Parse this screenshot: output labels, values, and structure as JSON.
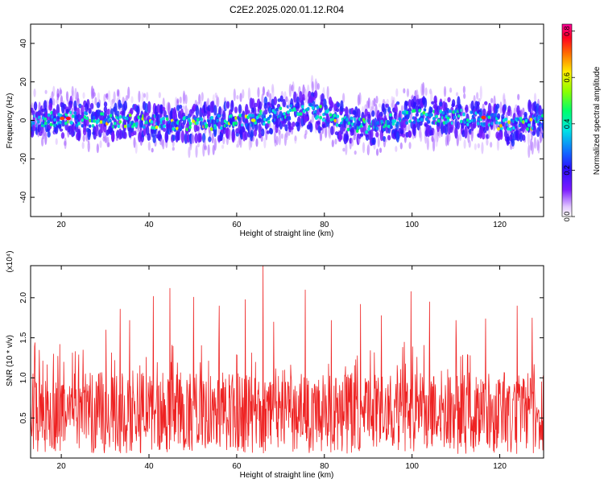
{
  "title": "C2E2.2025.020.01.12.R04",
  "chart_data": [
    {
      "type": "heatmap",
      "xlabel": "Height of straight line (km)",
      "ylabel": "Frequency (Hz)",
      "xlim": [
        13,
        130
      ],
      "ylim": [
        -50,
        50
      ],
      "xticks": [
        "20",
        "40",
        "60",
        "80",
        "100",
        "120"
      ],
      "yticks": [
        "40",
        "20",
        "0",
        "-20",
        "-40"
      ],
      "colorbar": {
        "label": "Normalized spectral amplitude",
        "range": [
          0.0,
          0.83
        ],
        "ticks": [
          "0.8",
          "0.6",
          "0.4",
          "0.2",
          "0.0"
        ],
        "colormap": "rainbow (white-violet-blue-cyan-green-yellow-red-magenta)"
      },
      "band_center": [
        {
          "x": 13,
          "y": 0
        },
        {
          "x": 20,
          "y": 1
        },
        {
          "x": 30,
          "y": 0
        },
        {
          "x": 40,
          "y": -1
        },
        {
          "x": 50,
          "y": -2
        },
        {
          "x": 60,
          "y": 0
        },
        {
          "x": 65,
          "y": 1
        },
        {
          "x": 70,
          "y": 3
        },
        {
          "x": 75,
          "y": 6
        },
        {
          "x": 79,
          "y": 4
        },
        {
          "x": 85,
          "y": -2
        },
        {
          "x": 90,
          "y": -3
        },
        {
          "x": 100,
          "y": 2
        },
        {
          "x": 110,
          "y": 2
        },
        {
          "x": 118,
          "y": 0
        },
        {
          "x": 122,
          "y": -3
        },
        {
          "x": 130,
          "y": 0
        }
      ],
      "peak_amplitude": 0.83
    },
    {
      "type": "line",
      "xlabel": "Height of straight line (km)",
      "ylabel": "SNR (10 * v/v)",
      "y_multiplier": "(x10⁴)",
      "xlim": [
        13,
        130
      ],
      "ylim": [
        0,
        2.4
      ],
      "xticks": [
        "20",
        "40",
        "60",
        "80",
        "100",
        "120"
      ],
      "yticks": [
        "2.0",
        "1.5",
        "1.0",
        "0.5"
      ],
      "color": "#ee2222",
      "baseline_mean": 0.62,
      "notable_peaks": [
        {
          "x": 66.0,
          "y": 2.4
        },
        {
          "x": 44.8,
          "y": 2.12
        },
        {
          "x": 75.6,
          "y": 2.1
        },
        {
          "x": 41.0,
          "y": 2.02
        },
        {
          "x": 50.2,
          "y": 2.01
        },
        {
          "x": 99.8,
          "y": 2.08
        },
        {
          "x": 62.0,
          "y": 1.98
        },
        {
          "x": 104.0,
          "y": 1.95
        },
        {
          "x": 88.2,
          "y": 1.92
        },
        {
          "x": 56.0,
          "y": 1.9
        },
        {
          "x": 33.4,
          "y": 1.86
        },
        {
          "x": 124.0,
          "y": 1.9
        },
        {
          "x": 127.4,
          "y": 1.75
        },
        {
          "x": 110.0,
          "y": 1.72
        },
        {
          "x": 93.0,
          "y": 1.78
        },
        {
          "x": 35.6,
          "y": 1.72
        },
        {
          "x": 68.4,
          "y": 1.7
        },
        {
          "x": 81.6,
          "y": 1.72
        },
        {
          "x": 116.8,
          "y": 1.74
        },
        {
          "x": 30.2,
          "y": 1.6
        },
        {
          "x": 20.6,
          "y": 1.2
        },
        {
          "x": 18.2,
          "y": 1.3
        },
        {
          "x": 25.0,
          "y": 1.35
        },
        {
          "x": 14.2,
          "y": 0.95
        }
      ]
    }
  ]
}
